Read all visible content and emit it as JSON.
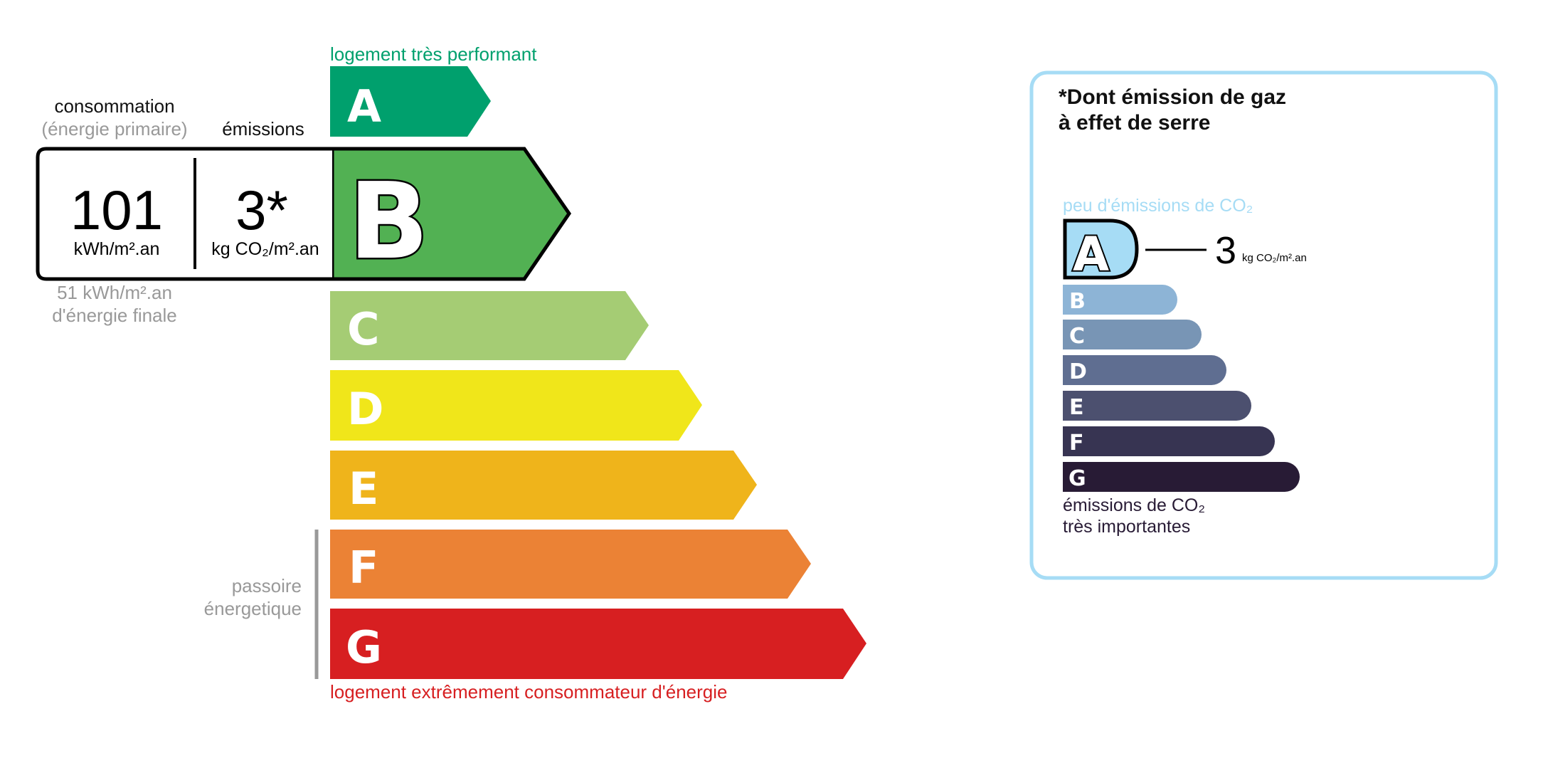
{
  "energy": {
    "top_label": "logement très performant",
    "bottom_label": "logement extrêmement consommateur d'énergie",
    "consumption_header": "consommation",
    "consumption_sub": "(énergie primaire)",
    "emissions_header": "émissions",
    "consumption_value": "101",
    "consumption_unit": "kWh/m².an",
    "emissions_value": "3*",
    "emissions_unit": "kg CO₂/m².an",
    "final_energy_line1": "51 kWh/m².an",
    "final_energy_line2": "d'énergie finale",
    "passoire_line1": "passoire",
    "passoire_line2": "énergetique",
    "current_class": "B",
    "classes": [
      {
        "letter": "A",
        "color": "#00a06d"
      },
      {
        "letter": "B",
        "color": "#52b153"
      },
      {
        "letter": "C",
        "color": "#a5cc74"
      },
      {
        "letter": "D",
        "color": "#f0e61a"
      },
      {
        "letter": "E",
        "color": "#efb41b"
      },
      {
        "letter": "F",
        "color": "#eb8235"
      },
      {
        "letter": "G",
        "color": "#d71f21"
      }
    ],
    "top_label_color": "#00a06d",
    "bottom_label_color": "#d71f21"
  },
  "ges": {
    "title_line1": "*Dont émission de gaz",
    "title_line2": "à effet de serre",
    "top_label": "peu d'émissions de CO₂",
    "bottom_line1": "émissions de CO₂",
    "bottom_line2": "très importantes",
    "current_class": "A",
    "value": "3",
    "unit": "kg CO₂/m².an",
    "classes": [
      {
        "letter": "A",
        "color": "#a6dcf5"
      },
      {
        "letter": "B",
        "color": "#8db4d6"
      },
      {
        "letter": "C",
        "color": "#7895b5"
      },
      {
        "letter": "D",
        "color": "#5f6e91"
      },
      {
        "letter": "E",
        "color": "#4c506f"
      },
      {
        "letter": "F",
        "color": "#373452"
      },
      {
        "letter": "G",
        "color": "#281b35"
      }
    ],
    "border_color": "#a6dcf5"
  }
}
